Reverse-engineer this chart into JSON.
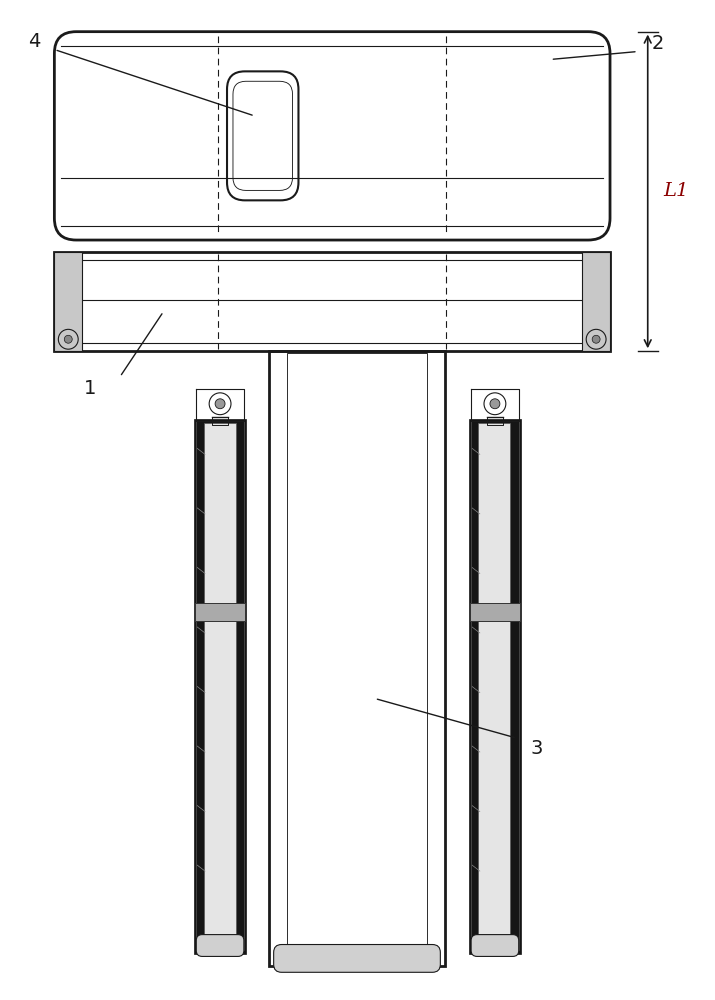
{
  "bg_color": "#ffffff",
  "lc": "#1a1a1a",
  "fig_w": 7.15,
  "fig_h": 10.0,
  "labels": {
    "1": "1",
    "2": "2",
    "3": "3",
    "4": "4",
    "L1": "L1"
  }
}
